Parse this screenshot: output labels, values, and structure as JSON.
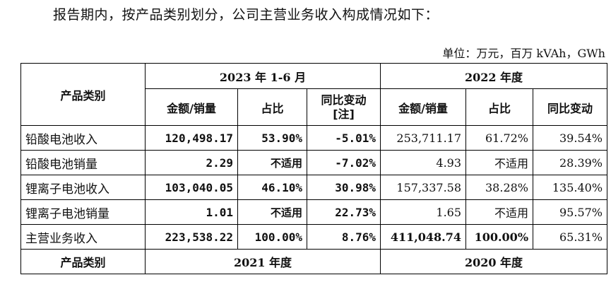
{
  "intro_text": "报告期内，按产品类别划分，公司主营业务收入构成情况如下：",
  "unit_text": "单位：万元，百万 kVAh，GWh",
  "header": {
    "category": "产品类别",
    "period_a": "2023 年 1-6 月",
    "period_b": "2022 年度",
    "col_amount_a": "金额/销量",
    "col_share_a": "占比",
    "col_yoy_a_line1": "同比变动",
    "col_yoy_a_line2": "[注]",
    "col_amount_b": "金额/销量",
    "col_share_b": "占比",
    "col_yoy_b": "同比变动"
  },
  "rows": [
    {
      "name": "铅酸电池收入",
      "a_amount": "120,498.17",
      "a_share": "53.90%",
      "a_yoy": "-5.01%",
      "b_amount": "253,711.17",
      "b_share": "61.72%",
      "b_yoy": "39.54%"
    },
    {
      "name": "铅酸电池销量",
      "a_amount": "2.29",
      "a_share": "不适用",
      "a_yoy": "-7.02%",
      "b_amount": "4.93",
      "b_share": "不适用",
      "b_yoy": "28.39%"
    },
    {
      "name": "锂离子电池收入",
      "a_amount": "103,040.05",
      "a_share": "46.10%",
      "a_yoy": "30.98%",
      "b_amount": "157,337.58",
      "b_share": "38.28%",
      "b_yoy": "135.40%"
    },
    {
      "name": "锂离子电池销量",
      "a_amount": "1.01",
      "a_share": "不适用",
      "a_yoy": "22.73%",
      "b_amount": "1.65",
      "b_share": "不适用",
      "b_yoy": "95.57%"
    },
    {
      "name": "主营业务收入",
      "a_amount": "223,538.22",
      "a_share": "100.00%",
      "a_yoy": "8.76%",
      "b_amount": "411,048.74",
      "b_share": "100.00%",
      "b_yoy": "65.31%"
    }
  ],
  "footer": {
    "category": "产品类别",
    "period_c": "2021 年度",
    "period_d": "2020 年度"
  }
}
